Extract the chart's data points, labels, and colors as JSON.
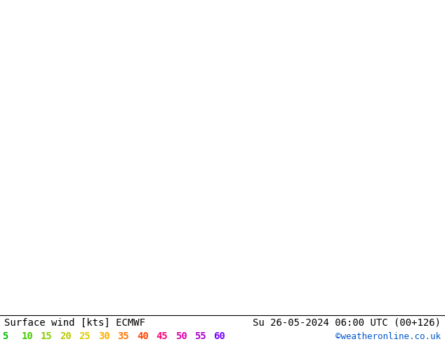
{
  "title_left": "Surface wind [kts] ECMWF",
  "title_right": "Su 26-05-2024 06:00 UTC (00+126)",
  "credit": "©weatheronline.co.uk",
  "legend_values": [
    5,
    10,
    15,
    20,
    25,
    30,
    35,
    40,
    45,
    50,
    55,
    60
  ],
  "legend_text_colors": [
    "#00bb00",
    "#44cc00",
    "#88cc00",
    "#bbcc00",
    "#ddcc00",
    "#ffaa00",
    "#ff7700",
    "#ff4400",
    "#ff0077",
    "#dd00aa",
    "#aa00cc",
    "#7700ff"
  ],
  "fig_width": 6.34,
  "fig_height": 4.9,
  "dpi": 100,
  "title_fontsize": 10,
  "legend_fontsize": 10,
  "wind_cmap_colors": [
    "#006600",
    "#009900",
    "#33cc00",
    "#88ee00",
    "#ccff00",
    "#ffff00",
    "#e6e600",
    "#cccc00",
    "#ffcc00",
    "#ffaa00",
    "#ff8800",
    "#ff6600",
    "#ff4400",
    "#ff0066",
    "#cc0099",
    "#9900cc"
  ],
  "map_extent": [
    2.0,
    22.0,
    46.0,
    56.0
  ],
  "wind_seed": 42,
  "border_color": "#333355",
  "border_lw": 0.7
}
